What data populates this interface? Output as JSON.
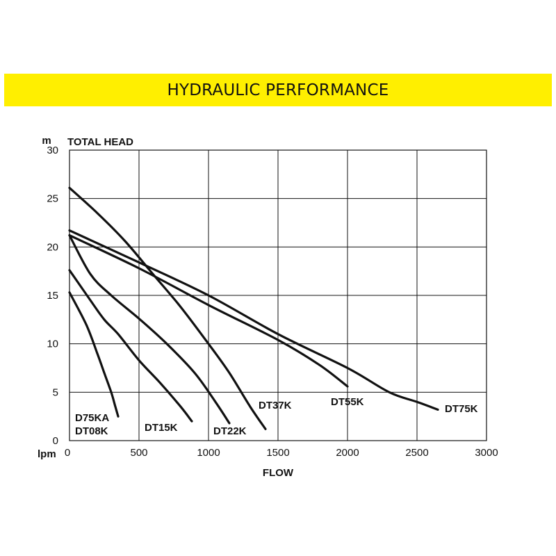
{
  "banner": {
    "title": "HYDRAULIC PERFORMANCE"
  },
  "chart_data": {
    "type": "line",
    "ylabel": "TOTAL HEAD",
    "y_unit": "m",
    "xlabel": "FLOW",
    "x_unit": "lpm",
    "xlim": [
      0,
      3000
    ],
    "ylim": [
      0,
      30
    ],
    "x_ticks": [
      "0",
      "500",
      "1000",
      "1500",
      "2000",
      "2500",
      "3000"
    ],
    "y_ticks": [
      "0",
      "5",
      "10",
      "15",
      "20",
      "25",
      "30"
    ],
    "x_tick_values": [
      0,
      500,
      1000,
      1500,
      2000,
      2500,
      3000
    ],
    "y_tick_values": [
      0,
      5,
      10,
      15,
      20,
      25,
      30
    ],
    "grid": true,
    "line_color": "#111111",
    "grid_color": "#111111",
    "series": [
      {
        "name": "D75KA DT08K",
        "label_lines": [
          "D75KA",
          "DT08K"
        ],
        "x": [
          0,
          120,
          200,
          250,
          300,
          330,
          350
        ],
        "y": [
          15.3,
          12,
          9,
          7,
          5,
          3.5,
          2.5
        ]
      },
      {
        "name": "DT15K",
        "x": [
          0,
          150,
          250,
          350,
          500,
          650,
          800,
          880
        ],
        "y": [
          17.6,
          14.5,
          12.5,
          11,
          8.3,
          6,
          3.5,
          2
        ]
      },
      {
        "name": "DT22K",
        "x": [
          0,
          150,
          300,
          500,
          700,
          900,
          1050,
          1150
        ],
        "y": [
          21.2,
          17.2,
          15,
          12.6,
          10,
          7,
          4,
          1.8
        ]
      },
      {
        "name": "DT37K",
        "x": [
          0,
          200,
          400,
          600,
          800,
          1000,
          1150,
          1300,
          1410
        ],
        "y": [
          26.1,
          23.5,
          20.6,
          17.2,
          13.8,
          10,
          7,
          3.5,
          1.2
        ]
      },
      {
        "name": "DT55K",
        "x": [
          0,
          500,
          1000,
          1500,
          1800,
          2000
        ],
        "y": [
          21.2,
          17.8,
          14,
          10.4,
          7.8,
          5.6
        ]
      },
      {
        "name": "DT75K",
        "x": [
          0,
          500,
          1000,
          1500,
          2000,
          2300,
          2500,
          2650
        ],
        "y": [
          21.7,
          18.4,
          15,
          11,
          7.5,
          5,
          4,
          3.2
        ]
      }
    ]
  }
}
